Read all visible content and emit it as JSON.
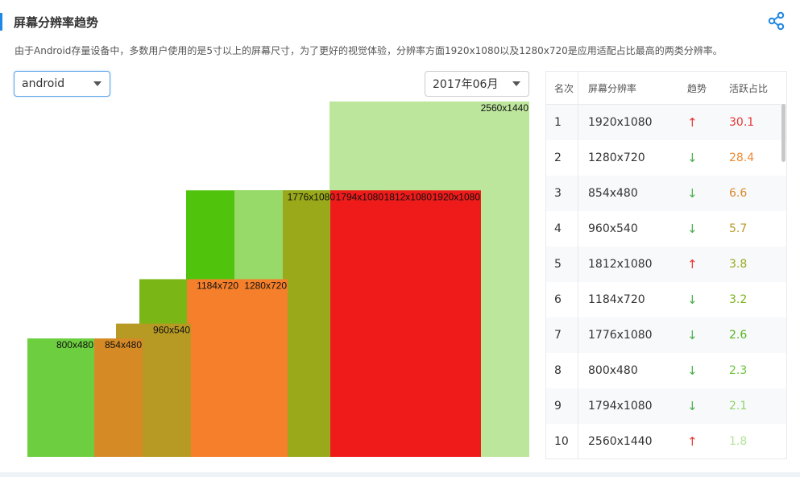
{
  "header": {
    "title": "屏幕分辨率趋势",
    "description": "由于Android存量设备中，多数用户使用的是5寸以上的屏幕尺寸，为了更好的视觉体验，分辨率方面1920x1080以及1280x720是应用适配占比最高的两类分辨率。"
  },
  "filters": {
    "os": "android",
    "month": "2017年06月"
  },
  "table": {
    "headers": {
      "rank": "名次",
      "resolution": "屏幕分辨率",
      "trend": "趋势",
      "share": "活跃占比"
    },
    "rows": [
      {
        "rank": "1",
        "resolution": "1920x1080",
        "trend": "up",
        "share": "30.1",
        "color": "#e53935"
      },
      {
        "rank": "2",
        "resolution": "1280x720",
        "trend": "down",
        "share": "28.4",
        "color": "#ef8a35"
      },
      {
        "rank": "3",
        "resolution": "854x480",
        "trend": "down",
        "share": "6.6",
        "color": "#d98a2a"
      },
      {
        "rank": "4",
        "resolution": "960x540",
        "trend": "down",
        "share": "5.7",
        "color": "#b69a26"
      },
      {
        "rank": "5",
        "resolution": "1812x1080",
        "trend": "up",
        "share": "3.8",
        "color": "#9aa81e"
      },
      {
        "rank": "6",
        "resolution": "1184x720",
        "trend": "down",
        "share": "3.2",
        "color": "#7cb31a"
      },
      {
        "rank": "7",
        "resolution": "1776x1080",
        "trend": "down",
        "share": "2.6",
        "color": "#55b51c"
      },
      {
        "rank": "8",
        "resolution": "800x480",
        "trend": "down",
        "share": "2.3",
        "color": "#6cc43a"
      },
      {
        "rank": "9",
        "resolution": "1794x1080",
        "trend": "down",
        "share": "2.1",
        "color": "#8fd46a"
      },
      {
        "rank": "10",
        "resolution": "2560x1440",
        "trend": "up",
        "share": "1.8",
        "color": "#b3e39a"
      }
    ]
  },
  "icons": {
    "share": "share-icon",
    "trend_up": "arrow-up-icon",
    "trend_down": "arrow-down-icon",
    "caret": "chevron-down-icon"
  },
  "chart_data": {
    "type": "bar",
    "unit_note": "Proportional rectangles: horizontal = pixel width, vertical = pixel height of each screen resolution",
    "x_range": [
      0,
      2560
    ],
    "y_range": [
      0,
      1440
    ],
    "series": [
      {
        "name": "2560x1440",
        "width": 2560,
        "height": 1440,
        "color": "#bde69d"
      },
      {
        "name": "1920x1080",
        "width": 1920,
        "height": 1080,
        "color": "#ef1b1b"
      },
      {
        "name": "1812x1080",
        "width": 1812,
        "height": 1080,
        "color": "#99a91a"
      },
      {
        "name": "1794x1080",
        "width": 1794,
        "height": 1080,
        "color": "#97da6a"
      },
      {
        "name": "1776x1080",
        "width": 1776,
        "height": 1080,
        "color": "#50c30c"
      },
      {
        "name": "1280x720",
        "width": 1280,
        "height": 720,
        "color": "#f57f2a"
      },
      {
        "name": "1184x720",
        "width": 1184,
        "height": 720,
        "color": "#7ab616"
      },
      {
        "name": "960x540",
        "width": 960,
        "height": 540,
        "color": "#b79a23"
      },
      {
        "name": "854x480",
        "width": 854,
        "height": 480,
        "color": "#d68a26"
      },
      {
        "name": "800x480",
        "width": 800,
        "height": 480,
        "color": "#6dcf40"
      }
    ]
  }
}
